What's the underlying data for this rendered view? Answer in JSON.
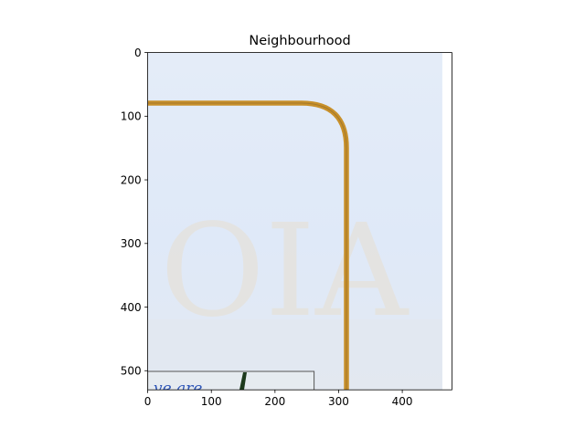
{
  "chart_data": {
    "type": "image",
    "title": "Neighbourhood",
    "xlabel": "",
    "ylabel": "",
    "xlim": [
      0,
      478
    ],
    "ylim": [
      530,
      0
    ],
    "x_ticks": [
      0,
      100,
      200,
      300,
      400
    ],
    "y_ticks": [
      0,
      100,
      200,
      300,
      400,
      500
    ],
    "grid": false,
    "image_width": 465,
    "image_height": 530,
    "colors": {
      "background_paper": "#dde8f7",
      "guide_line": "#c8902a",
      "stamp_ink": "#2f56b8",
      "frame": "#555555"
    }
  }
}
